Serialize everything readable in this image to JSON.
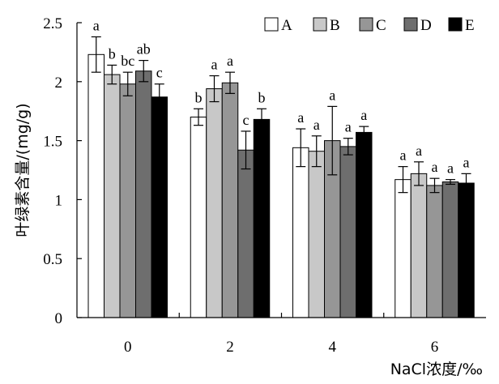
{
  "chart_data": {
    "type": "bar",
    "title": "",
    "xlabel": "NaCl浓度/‰",
    "ylabel": "叶绿素含量/(mg/g)",
    "categories": [
      "0",
      "2",
      "4",
      "6"
    ],
    "ylim": [
      0,
      2.5
    ],
    "yticks": [
      "0",
      "0.5",
      "1",
      "1.5",
      "2",
      "2.5"
    ],
    "grid": false,
    "legend_position": "top-right",
    "series": [
      {
        "name": "A",
        "color": "#ffffff",
        "values": [
          2.23,
          1.7,
          1.44,
          1.17
        ],
        "errors": [
          0.15,
          0.07,
          0.16,
          0.11
        ],
        "labels": [
          "a",
          "b",
          "a",
          "a"
        ]
      },
      {
        "name": "B",
        "color": "#c8c8c8",
        "values": [
          2.06,
          1.94,
          1.41,
          1.22
        ],
        "errors": [
          0.08,
          0.11,
          0.13,
          0.1
        ],
        "labels": [
          "b",
          "a",
          "a",
          "a"
        ]
      },
      {
        "name": "C",
        "color": "#969696",
        "values": [
          1.98,
          1.99,
          1.5,
          1.12
        ],
        "errors": [
          0.1,
          0.09,
          0.29,
          0.06
        ],
        "labels": [
          "bc",
          "a",
          "a",
          "a"
        ]
      },
      {
        "name": "D",
        "color": "#6e6e6e",
        "values": [
          2.09,
          1.42,
          1.45,
          1.15
        ],
        "errors": [
          0.09,
          0.16,
          0.07,
          0.02
        ],
        "labels": [
          "ab",
          "c",
          "a",
          "a"
        ]
      },
      {
        "name": "E",
        "color": "#000000",
        "values": [
          1.87,
          1.68,
          1.57,
          1.14
        ],
        "errors": [
          0.11,
          0.09,
          0.05,
          0.08
        ],
        "labels": [
          "c",
          "b",
          "a",
          "a"
        ]
      }
    ]
  }
}
